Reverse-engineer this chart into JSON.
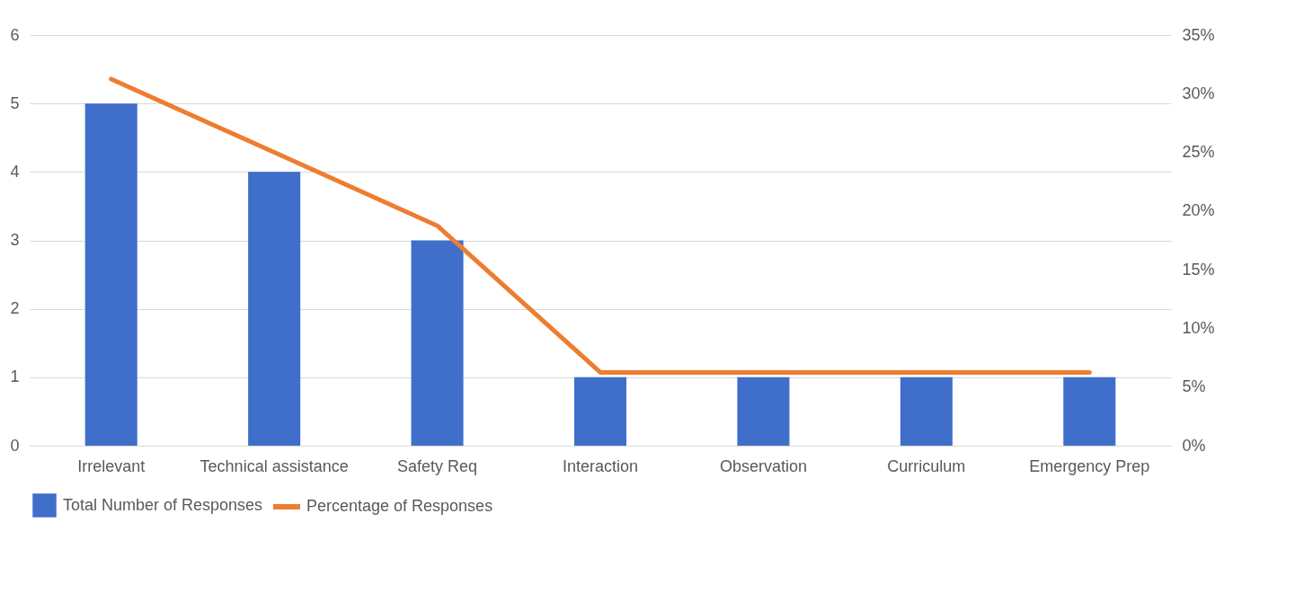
{
  "chart_data": {
    "type": "bar",
    "categories": [
      "Irrelevant",
      "Technical assistance",
      "Safety Req",
      "Interaction",
      "Observation",
      "Curriculum",
      "Emergency Prep"
    ],
    "series": [
      {
        "name": "Total Number of Responses",
        "color": "#3f6fcb",
        "values": [
          5,
          4,
          3,
          1,
          1,
          1,
          1
        ]
      },
      {
        "name": "Percentage of Responses",
        "type": "line",
        "axis": "y2",
        "color": "#ed7d31",
        "values": [
          31.25,
          25,
          18.75,
          6.25,
          6.25,
          6.25,
          6.25
        ]
      }
    ],
    "ylim": [
      0,
      6
    ],
    "yticks": [
      0,
      1,
      2,
      3,
      4,
      5,
      6
    ],
    "y2lim": [
      0,
      35
    ],
    "y2ticks": [
      {
        "value": 0,
        "label": "0%"
      },
      {
        "value": 5,
        "label": "5%"
      },
      {
        "value": 10,
        "label": "10%"
      },
      {
        "value": 15,
        "label": "15%"
      },
      {
        "value": 20,
        "label": "20%"
      },
      {
        "value": 25,
        "label": "25%"
      },
      {
        "value": 30,
        "label": "30%"
      },
      {
        "value": 35,
        "label": "35%"
      }
    ],
    "grid": "y",
    "legend": "bottom"
  }
}
